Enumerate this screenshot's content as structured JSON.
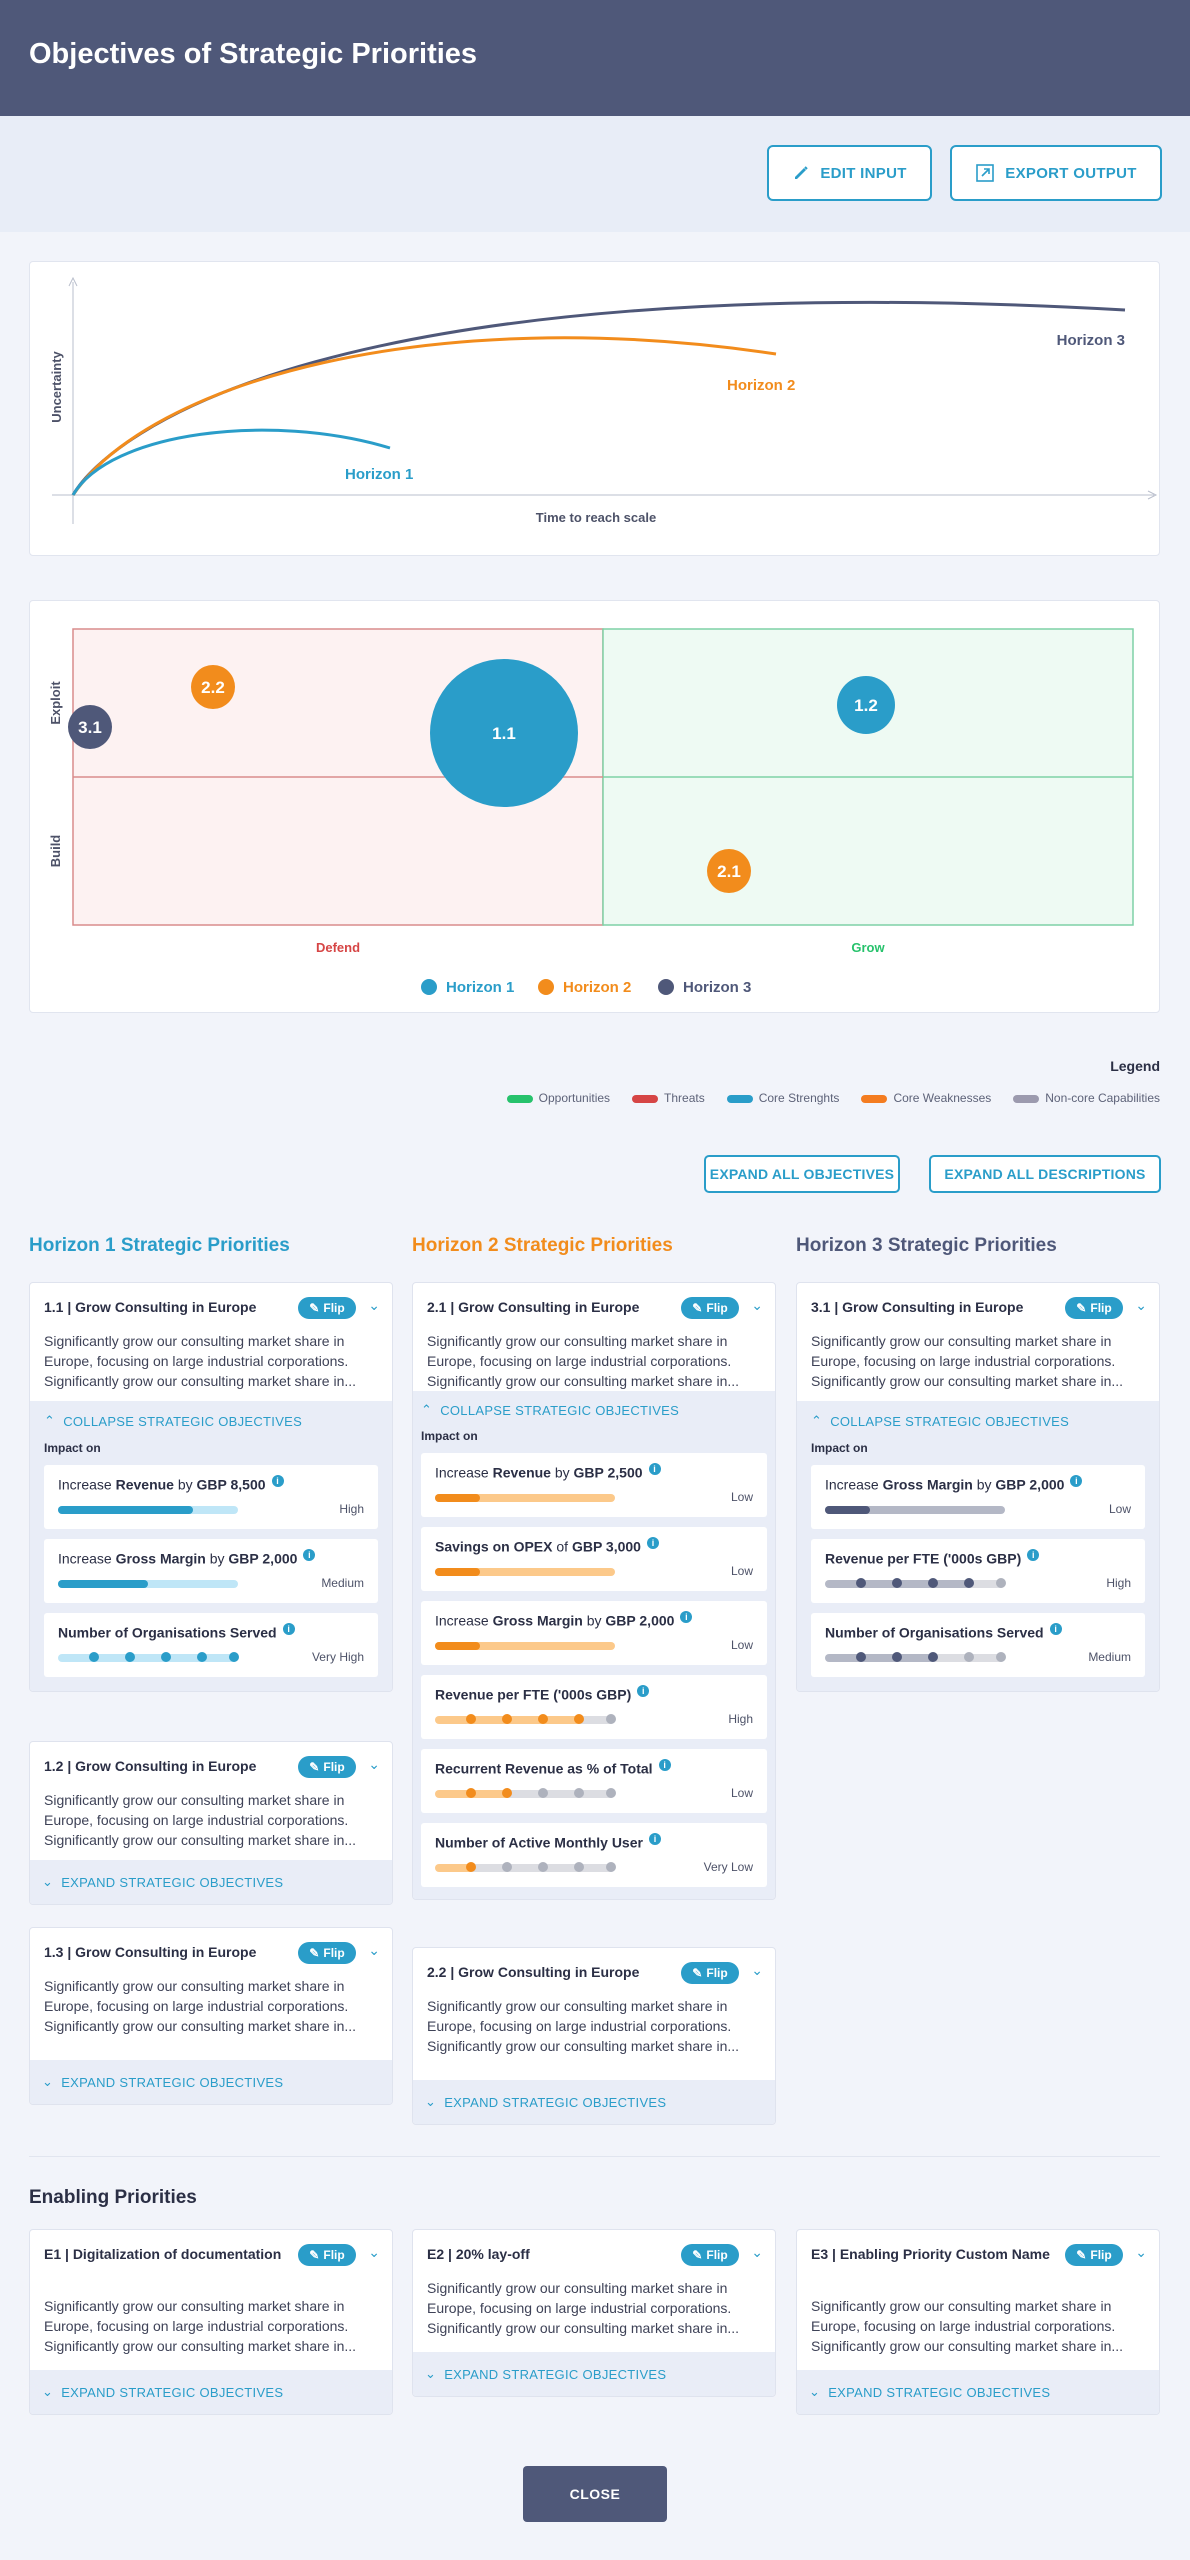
{
  "header": {
    "title": "Objectives of Strategic Priorities"
  },
  "toolbar": {
    "edit_label": "EDIT INPUT",
    "export_label": "EXPORT OUTPUT"
  },
  "curve_chart": {
    "y_label": "Uncertainty",
    "x_label": "Time to reach scale",
    "series": [
      "Horizon 1",
      "Horizon 2",
      "Horizon 3"
    ]
  },
  "matrix": {
    "y_labels": [
      "Exploit",
      "Build"
    ],
    "x_labels": [
      "Defend",
      "Grow"
    ],
    "bubbles": [
      {
        "label": "3.1"
      },
      {
        "label": "2.2"
      },
      {
        "label": "1.1"
      },
      {
        "label": "1.2"
      },
      {
        "label": "2.1"
      }
    ],
    "legend": [
      "Horizon 1",
      "Horizon 2",
      "Horizon 3"
    ]
  },
  "legend": {
    "title": "Legend",
    "items": [
      {
        "label": "Opportunities",
        "color": "#27c26c"
      },
      {
        "label": "Threats",
        "color": "#d64545"
      },
      {
        "label": "Core Strenghts",
        "color": "#2a9dc9"
      },
      {
        "label": "Core Weaknesses",
        "color": "#f47c20"
      },
      {
        "label": "Non-core Capabilities",
        "color": "#9c9aae"
      }
    ]
  },
  "actions": {
    "expand_objectives": "EXPAND ALL OBJECTIVES",
    "expand_descriptions": "EXPAND ALL DESCRIPTIONS"
  },
  "common": {
    "flip": "Flip",
    "desc": "Significantly grow our consulting market share in Europe, focusing on large industrial corporations. Significantly grow our consulting market share in...",
    "expand": "EXPAND STRATEGIC OBJECTIVES",
    "collapse": "COLLAPSE STRATEGIC OBJECTIVES",
    "impact": "Impact on"
  },
  "columns": [
    {
      "title": "Horizon 1 Strategic Priorities",
      "color": "#2a9dc9"
    },
    {
      "title": "Horizon 2 Strategic Priorities",
      "color": "#f28c1c"
    },
    {
      "title": "Horizon 3 Strategic Priorities",
      "color": "#4f5879"
    }
  ],
  "cards": {
    "c11": {
      "title": "1.1 | Grow Consulting in Europe",
      "metrics": [
        {
          "pre": "Increase ",
          "b1": "Revenue",
          "mid": " by ",
          "b2": "GBP 8,500",
          "level": "High",
          "fill": 0.75
        },
        {
          "pre": "Increase ",
          "b1": "Gross Margin",
          "mid": " by ",
          "b2": "GBP 2,000",
          "level": "Medium",
          "fill": 0.5
        },
        {
          "pre": "",
          "b1": "Number of Organisations Served",
          "mid": "",
          "b2": "",
          "level": "Very High",
          "dots": 5
        }
      ]
    },
    "c12": {
      "title": "1.2 | Grow Consulting in Europe"
    },
    "c13": {
      "title": "1.3 | Grow Consulting in Europe"
    },
    "c21": {
      "title": "2.1 | Grow Consulting in Europe",
      "metrics": [
        {
          "pre": "Increase ",
          "b1": "Revenue",
          "mid": " by ",
          "b2": "GBP 2,500",
          "level": "Low",
          "fill": 0.25
        },
        {
          "pre": "",
          "b1": "Savings on OPEX",
          "mid": " of ",
          "b2": "GBP 3,000",
          "level": "Low",
          "fill": 0.25
        },
        {
          "pre": "Increase ",
          "b1": "Gross Margin",
          "mid": " by ",
          "b2": "GBP 2,000",
          "level": "Low",
          "fill": 0.25
        },
        {
          "pre": "",
          "b1": "Revenue per FTE ('000s GBP)",
          "mid": "",
          "b2": "",
          "level": "High",
          "dots": 4
        },
        {
          "pre": "",
          "b1": "Recurrent Revenue as % of Total",
          "mid": "",
          "b2": "",
          "level": "Low",
          "dots": 2
        },
        {
          "pre": "",
          "b1": "Number of Active Monthly User",
          "mid": "",
          "b2": "",
          "level": "Very Low",
          "dots": 1
        }
      ]
    },
    "c22": {
      "title": "2.2 | Grow Consulting in Europe"
    },
    "c31": {
      "title": "3.1 | Grow Consulting in Europe",
      "metrics": [
        {
          "pre": "Increase ",
          "b1": "Gross Margin",
          "mid": " by ",
          "b2": "GBP 2,000",
          "level": "Low",
          "fill": 0.25
        },
        {
          "pre": "",
          "b1": "Revenue per FTE ('000s GBP)",
          "mid": "",
          "b2": "",
          "level": "High",
          "dots": 4
        },
        {
          "pre": "",
          "b1": "Number of Organisations Served",
          "mid": "",
          "b2": "",
          "level": "Medium",
          "dots": 3
        }
      ]
    }
  },
  "enabling": {
    "title": "Enabling Priorities",
    "items": [
      {
        "title": "E1 | Digitalization of documentation"
      },
      {
        "title": "E2 | 20% lay-off"
      },
      {
        "title": "E3 | Enabling Priority Custom Name"
      }
    ]
  },
  "close_label": "CLOSE"
}
